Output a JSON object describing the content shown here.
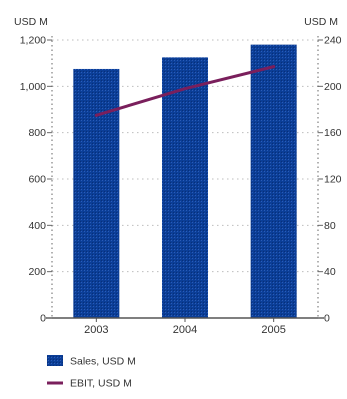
{
  "chart_data": {
    "type": "bar",
    "categories": [
      "2003",
      "2004",
      "2005"
    ],
    "series": [
      {
        "name": "Sales, USD M",
        "kind": "bar",
        "axis": "left",
        "values": [
          1075,
          1125,
          1180
        ]
      },
      {
        "name": "EBIT, USD M",
        "kind": "line",
        "axis": "right",
        "values": [
          175,
          198,
          217
        ]
      }
    ],
    "left_axis": {
      "unit_label": "USD M",
      "range": [
        0,
        1200
      ],
      "ticks": [
        0,
        200,
        400,
        600,
        800,
        1000,
        1200
      ],
      "tick_labels": [
        "0",
        "200",
        "400",
        "600",
        "800",
        "1,000",
        "1,200"
      ]
    },
    "right_axis": {
      "unit_label": "USD M",
      "range": [
        0,
        240
      ],
      "ticks": [
        0,
        40,
        80,
        120,
        160,
        200,
        240
      ],
      "tick_labels": [
        "0",
        "40",
        "80",
        "120",
        "160",
        "200",
        "240"
      ]
    },
    "grid": true,
    "legend_position": "bottom-left",
    "colors": {
      "bar": "#0b3e97",
      "line": "#7a1f5c",
      "axis": "#666666",
      "grid": "#bdbdbd"
    }
  }
}
